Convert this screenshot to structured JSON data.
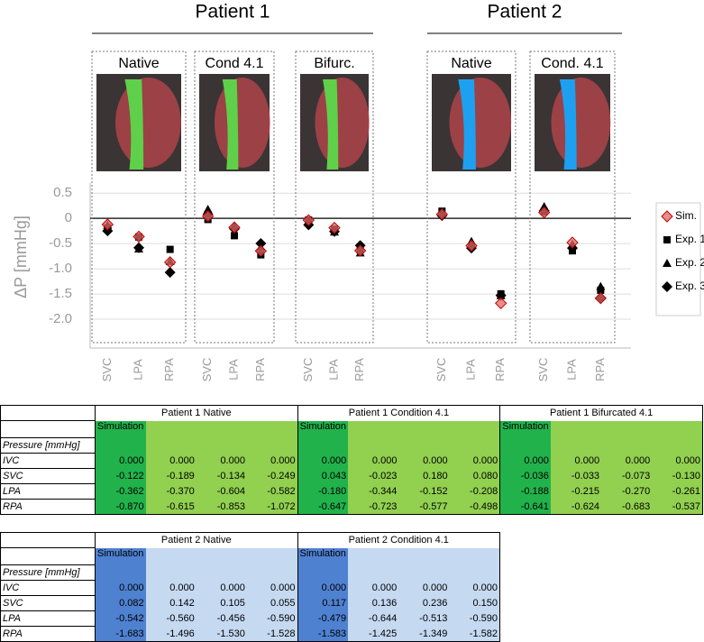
{
  "chart_data": {
    "type": "scatter",
    "y_label": "ΔP [mmHg]",
    "ylim": [
      -2.5,
      0.7
    ],
    "yticks": [
      0.5,
      0,
      -0.5,
      {
        "value": -1,
        "label": "-1.0"
      },
      -1.5,
      {
        "value": -2,
        "label": "-2.0"
      }
    ],
    "grid": true,
    "legend": "right",
    "categories": [
      "SVC",
      "LPA",
      "RPA"
    ],
    "groups": [
      {
        "title": "Patient 1",
        "panels": [
          "Native",
          "Cond 4.1",
          "Bifurc."
        ]
      },
      {
        "title": "Patient 2",
        "panels": [
          "Native",
          "Cond. 4.1"
        ]
      }
    ],
    "series": [
      {
        "name": "Sim.",
        "color": "#e06666",
        "marker": "diamond"
      },
      {
        "name": "Exp. 1",
        "color": "#000000",
        "marker": "square"
      },
      {
        "name": "Exp. 2",
        "color": "#000000",
        "marker": "triangle"
      },
      {
        "name": "Exp. 3",
        "color": "#000000",
        "marker": "diamond"
      }
    ]
  },
  "tables": [
    {
      "pressure_label": "Pressure [mmHg]",
      "row_labels": [
        "IVC",
        "SVC",
        "LPA",
        "RPA"
      ],
      "sim_color": "#22b24c",
      "color": "#92d050",
      "groups": [
        {
          "title": "Patient 1 Native",
          "simulation": "Simulation",
          "rows": [
            [
              "0.000",
              "0.000",
              "0.000",
              "0.000"
            ],
            [
              "-0.122",
              "-0.189",
              "-0.134",
              "-0.249"
            ],
            [
              "-0.362",
              "-0.370",
              "-0.604",
              "-0.582"
            ],
            [
              "-0.870",
              "-0.615",
              "-0.853",
              "-1.072"
            ]
          ]
        },
        {
          "title": "Patient 1 Condition 4.1",
          "simulation": "Simulation",
          "rows": [
            [
              "0.000",
              "0.000",
              "0.000",
              "0.000"
            ],
            [
              "0.043",
              "-0.023",
              "0.180",
              "0.080"
            ],
            [
              "-0.180",
              "-0.344",
              "-0.152",
              "-0.208"
            ],
            [
              "-0.647",
              "-0.723",
              "-0.577",
              "-0.498"
            ]
          ]
        },
        {
          "title": "Patient 1 Bifurcated 4.1",
          "simulation": "Simulation",
          "rows": [
            [
              "0.000",
              "0.000",
              "0.000",
              "0.000"
            ],
            [
              "-0.036",
              "-0.033",
              "-0.073",
              "-0.130"
            ],
            [
              "-0.188",
              "-0.215",
              "-0.270",
              "-0.261"
            ],
            [
              "-0.641",
              "-0.624",
              "-0.683",
              "-0.537"
            ]
          ]
        }
      ]
    },
    {
      "pressure_label": "Pressure [mmHg]",
      "row_labels": [
        "IVC",
        "SVC",
        "LPA",
        "RPA"
      ],
      "sim_color": "#4f81d1",
      "color": "#c5d9f1",
      "groups": [
        {
          "title": "Patient 2 Native",
          "simulation": "Simulation",
          "rows": [
            [
              "0.000",
              "0.000",
              "0.000",
              "0.000"
            ],
            [
              "0.082",
              "0.142",
              "0.105",
              "0.055"
            ],
            [
              "-0.542",
              "-0.560",
              "-0.456",
              "-0.590"
            ],
            [
              "-1.683",
              "-1.496",
              "-1.530",
              "-1.528"
            ]
          ]
        },
        {
          "title": "Patient 2 Condition 4.1",
          "simulation": "Simulation",
          "rows": [
            [
              "0.000",
              "0.000",
              "0.000",
              "0.000"
            ],
            [
              "0.117",
              "0.136",
              "0.236",
              "0.150"
            ],
            [
              "-0.479",
              "-0.644",
              "-0.513",
              "-0.590"
            ],
            [
              "-1.583",
              "-1.425",
              "-1.349",
              "-1.582"
            ]
          ]
        }
      ]
    }
  ]
}
